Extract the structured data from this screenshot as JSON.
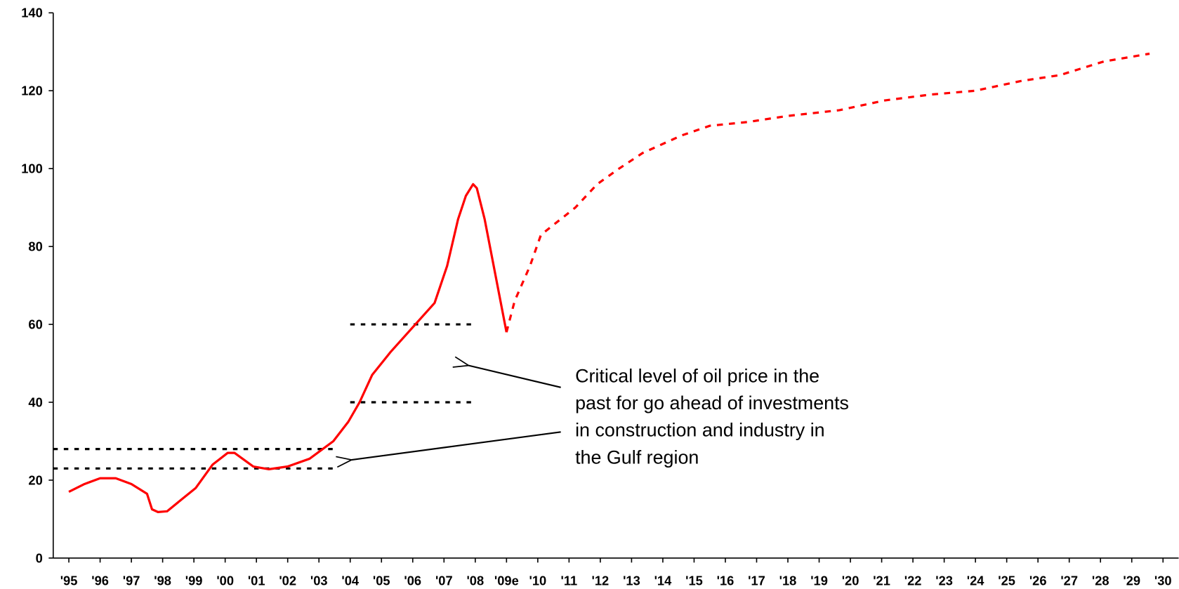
{
  "chart_data": {
    "type": "line",
    "xlim": [
      1994.5,
      2030.5
    ],
    "ylim": [
      0,
      140
    ],
    "yticks": [
      0,
      20,
      40,
      60,
      80,
      100,
      120,
      140
    ],
    "xticks": [
      {
        "value": 1995,
        "label": "'95"
      },
      {
        "value": 1996,
        "label": "'96"
      },
      {
        "value": 1997,
        "label": "'97"
      },
      {
        "value": 1998,
        "label": "'98"
      },
      {
        "value": 1999,
        "label": "'99"
      },
      {
        "value": 2000,
        "label": "'00"
      },
      {
        "value": 2001,
        "label": "'01"
      },
      {
        "value": 2002,
        "label": "'02"
      },
      {
        "value": 2003,
        "label": "'03"
      },
      {
        "value": 2004,
        "label": "'04"
      },
      {
        "value": 2005,
        "label": "'05"
      },
      {
        "value": 2006,
        "label": "'06"
      },
      {
        "value": 2007,
        "label": "'07"
      },
      {
        "value": 2008,
        "label": "'08"
      },
      {
        "value": 2009,
        "label": "'09e"
      },
      {
        "value": 2010,
        "label": "'10"
      },
      {
        "value": 2011,
        "label": "'11"
      },
      {
        "value": 2012,
        "label": "'12"
      },
      {
        "value": 2013,
        "label": "'13"
      },
      {
        "value": 2014,
        "label": "'14"
      },
      {
        "value": 2015,
        "label": "'15"
      },
      {
        "value": 2016,
        "label": "'16"
      },
      {
        "value": 2017,
        "label": "'17"
      },
      {
        "value": 2018,
        "label": "'18"
      },
      {
        "value": 2019,
        "label": "'19"
      },
      {
        "value": 2020,
        "label": "'20"
      },
      {
        "value": 2021,
        "label": "'21"
      },
      {
        "value": 2022,
        "label": "'22"
      },
      {
        "value": 2023,
        "label": "'23"
      },
      {
        "value": 2024,
        "label": "'24"
      },
      {
        "value": 2025,
        "label": "'25"
      },
      {
        "value": 2026,
        "label": "'26"
      },
      {
        "value": 2027,
        "label": "'27"
      },
      {
        "value": 2028,
        "label": "'28"
      },
      {
        "value": 2029,
        "label": "'29"
      },
      {
        "value": 2030,
        "label": "'30"
      }
    ],
    "series": [
      {
        "color": "#ff0000",
        "dashed": false,
        "x": [
          1995,
          1995.5,
          1996,
          1996.5,
          1997,
          1997.5,
          1997.66,
          1997.85,
          1998.14,
          1998.6,
          1999.06,
          1999.6,
          2000.08,
          2000.3,
          2000.9,
          2001.4,
          2002.0,
          2002.7,
          2003.46,
          2003.94,
          2004.3,
          2004.7,
          2005.3,
          2006.7,
          2007.1,
          2007.45,
          2007.7,
          2007.93,
          2008.05,
          2008.3,
          2009.0
        ],
        "values": [
          17,
          19,
          20.5,
          20.5,
          19,
          16.5,
          12.5,
          11.8,
          12,
          15,
          18,
          24,
          27,
          27,
          23.5,
          22.8,
          23.5,
          25.5,
          30,
          35,
          40,
          47,
          53,
          65.5,
          75,
          87,
          93,
          96,
          95,
          87,
          58
        ]
      },
      {
        "color": "#ff0000",
        "dashed": true,
        "x": [
          2009.0,
          2009.26,
          2009.75,
          2010.1,
          2011.2,
          2011.9,
          2012.6,
          2013.35,
          2014.6,
          2015.5,
          2016.75,
          2017.96,
          2019.65,
          2021.1,
          2022.55,
          2024.0,
          2025.45,
          2026.7,
          2028.1,
          2029.57
        ],
        "values": [
          58,
          66,
          75,
          83,
          90,
          96,
          100,
          104,
          108.5,
          111,
          112,
          113.5,
          115,
          117.5,
          119,
          120,
          122.5,
          124,
          127.5,
          129.5
        ]
      }
    ],
    "reference_lines": [
      {
        "value": 28,
        "x": [
          1994.5,
          2003.6
        ]
      },
      {
        "value": 23,
        "x": [
          1994.5,
          2003.6
        ]
      },
      {
        "value": 60,
        "x": [
          2004.0,
          2007.9
        ]
      },
      {
        "value": 40,
        "x": [
          2004.0,
          2007.9
        ]
      }
    ],
    "annotation": [
      "Critical level of oil price in the",
      "past for go ahead of investments",
      "in construction and industry in",
      "the Gulf region"
    ]
  }
}
